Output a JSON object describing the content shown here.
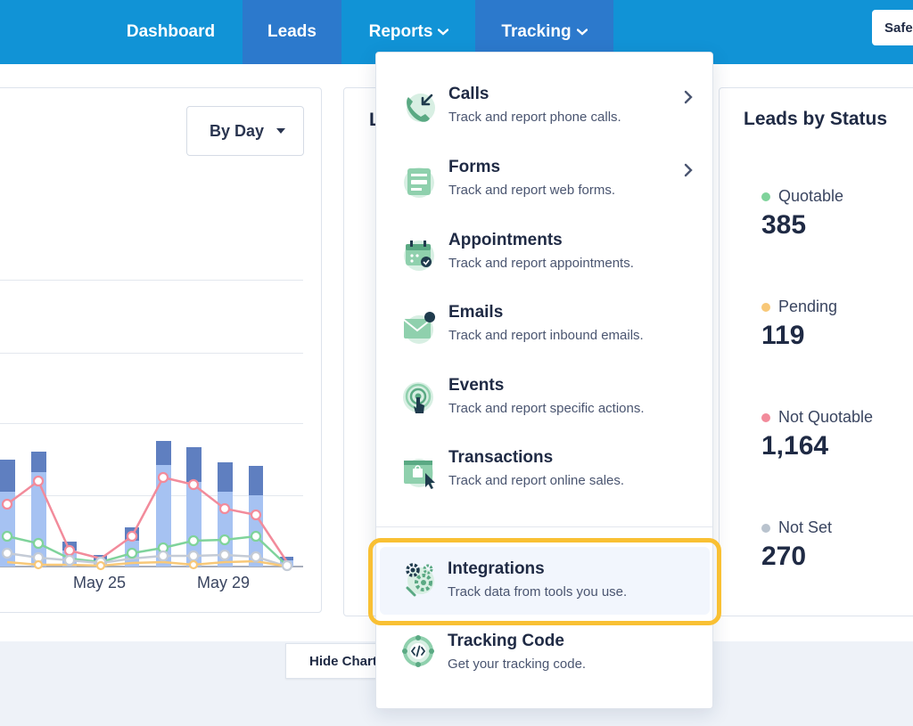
{
  "nav": {
    "dashboard": "Dashboard",
    "leads": "Leads",
    "reports": "Reports",
    "tracking": "Tracking",
    "safe_button": "Safe"
  },
  "chart_controls": {
    "range_select": "By Day",
    "hide_chart": "Hide Chart"
  },
  "chart_data": {
    "type": "bar",
    "categories": [
      "",
      "",
      "",
      "",
      "",
      "",
      "",
      "",
      ""
    ],
    "tick_labels": [
      "May 25",
      "May 29"
    ],
    "note": "partially hidden behind dropdown",
    "grid": true
  },
  "leads_card_partial_title": "L",
  "leads_by_status": {
    "title": "Leads by Status",
    "items": [
      {
        "label": "Quotable",
        "value": "385",
        "color": "#7fd39b"
      },
      {
        "label": "Pending",
        "value": "119",
        "color": "#f8c878"
      },
      {
        "label": "Not Quotable",
        "value": "1,164",
        "color": "#f28b9b"
      },
      {
        "label": "Not Set",
        "value": "270",
        "color": "#b9c3ce"
      }
    ]
  },
  "tracking_menu": {
    "items": [
      {
        "title": "Calls",
        "desc": "Track and report phone calls.",
        "icon": "phone-icon",
        "has_submenu": true
      },
      {
        "title": "Forms",
        "desc": "Track and report web forms.",
        "icon": "form-icon",
        "has_submenu": true
      },
      {
        "title": "Appointments",
        "desc": "Track and report appointments.",
        "icon": "calendar-icon",
        "has_submenu": false
      },
      {
        "title": "Emails",
        "desc": "Track and report inbound emails.",
        "icon": "email-icon",
        "has_submenu": false
      },
      {
        "title": "Events",
        "desc": "Track and report specific actions.",
        "icon": "touch-icon",
        "has_submenu": false
      },
      {
        "title": "Transactions",
        "desc": "Track and report online sales.",
        "icon": "shopping-icon",
        "has_submenu": false
      },
      {
        "title": "Integrations",
        "desc": "Track data from tools you use.",
        "icon": "gears-icon",
        "has_submenu": false,
        "highlighted": true
      },
      {
        "title": "Tracking Code",
        "desc": "Get your tracking code.",
        "icon": "code-icon",
        "has_submenu": false
      }
    ]
  },
  "colors": {
    "nav_bg": "#1193d6",
    "nav_active": "#2c79cc",
    "highlight": "#f9c033",
    "icon_green": "#5aa983"
  }
}
